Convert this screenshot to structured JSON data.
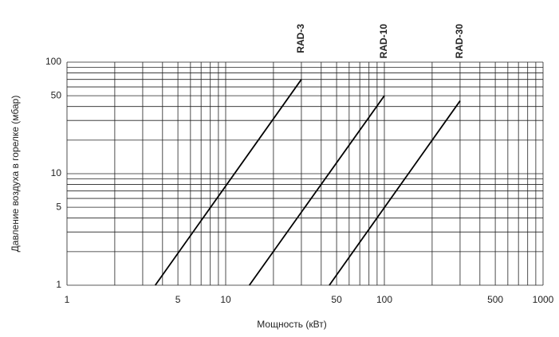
{
  "chart_data": {
    "type": "line",
    "x_label": "Мощность (кВт)",
    "y_label": "Давление воздуха в горелке (мбар)",
    "xscale": "log",
    "yscale": "log",
    "xlim": [
      1,
      1000
    ],
    "ylim": [
      1,
      100
    ],
    "xticks": [
      1,
      5,
      10,
      50,
      100,
      500,
      1000
    ],
    "yticks": [
      1,
      5,
      10,
      50,
      100
    ],
    "x_grid": [
      1,
      2,
      3,
      4,
      5,
      6,
      7,
      8,
      9,
      10,
      20,
      30,
      40,
      50,
      60,
      70,
      80,
      90,
      100,
      200,
      300,
      400,
      500,
      600,
      700,
      800,
      900,
      1000
    ],
    "y_grid": [
      1,
      2,
      3,
      4,
      5,
      6,
      7,
      8,
      9,
      10,
      20,
      30,
      40,
      50,
      60,
      70,
      80,
      90,
      100
    ],
    "series": [
      {
        "name": "RAD-3",
        "color": "#000000",
        "x": [
          3.6,
          30
        ],
        "values": [
          1,
          70
        ]
      },
      {
        "name": "RAD-10",
        "color": "#000000",
        "x": [
          14.1,
          100
        ],
        "values": [
          1,
          50
        ]
      },
      {
        "name": "RAD-30",
        "color": "#000000",
        "x": [
          45,
          300
        ],
        "values": [
          1,
          45
        ]
      }
    ]
  }
}
